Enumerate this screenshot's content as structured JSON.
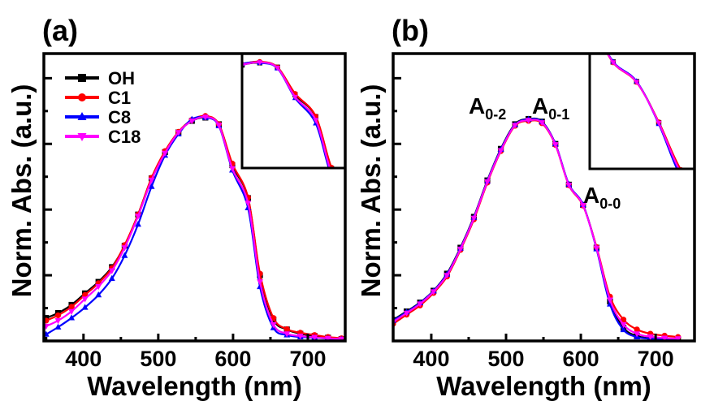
{
  "chart_data": [
    {
      "panel_label": "(a)",
      "type": "line",
      "xlabel": "Wavelength (nm)",
      "ylabel": "Norm. Abs. (a.u.)",
      "xlim": [
        347,
        750
      ],
      "ylim": [
        0,
        0.875
      ],
      "x_ticks": [
        400,
        500,
        600,
        700
      ],
      "x_tick_labels": [
        "400",
        "500",
        "600",
        "700"
      ],
      "y_tick_labels_shown": false,
      "grid": false,
      "legend": {
        "placement": "top-left",
        "entries": [
          {
            "name": "OH",
            "color": "#000000",
            "marker": "square"
          },
          {
            "name": "C1",
            "color": "#ff0000",
            "marker": "circle"
          },
          {
            "name": "C8",
            "color": "#0000ff",
            "marker": "triangle-up"
          },
          {
            "name": "C18",
            "color": "#ff00ff",
            "marker": "triangle-down"
          }
        ]
      },
      "x": [
        350,
        366,
        384,
        402,
        420,
        438,
        455,
        473,
        491,
        509,
        527,
        545,
        563,
        581,
        599,
        620,
        636,
        654,
        672,
        690,
        709,
        727,
        745
      ],
      "series": [
        {
          "name": "OH",
          "color": "#000000",
          "values": [
            0.07,
            0.085,
            0.11,
            0.145,
            0.18,
            0.225,
            0.29,
            0.385,
            0.495,
            0.575,
            0.635,
            0.67,
            0.68,
            0.66,
            0.535,
            0.435,
            0.2,
            0.065,
            0.035,
            0.022,
            0.015,
            0.01,
            0.006
          ]
        },
        {
          "name": "C1",
          "color": "#ff0000",
          "values": [
            0.062,
            0.078,
            0.104,
            0.14,
            0.176,
            0.222,
            0.292,
            0.385,
            0.497,
            0.578,
            0.637,
            0.673,
            0.685,
            0.66,
            0.54,
            0.437,
            0.205,
            0.07,
            0.036,
            0.025,
            0.018,
            0.012,
            0.008
          ]
        },
        {
          "name": "C8",
          "color": "#0000ff",
          "values": [
            0.02,
            0.042,
            0.07,
            0.102,
            0.14,
            0.19,
            0.26,
            0.355,
            0.47,
            0.565,
            0.63,
            0.675,
            0.68,
            0.655,
            0.52,
            0.405,
            0.165,
            0.04,
            0.018,
            0.012,
            0.01,
            0.007,
            0.005
          ]
        },
        {
          "name": "C18",
          "color": "#ff00ff",
          "values": [
            0.045,
            0.062,
            0.09,
            0.128,
            0.166,
            0.214,
            0.284,
            0.38,
            0.49,
            0.572,
            0.635,
            0.67,
            0.682,
            0.657,
            0.525,
            0.42,
            0.18,
            0.05,
            0.022,
            0.015,
            0.011,
            0.008,
            0.006
          ]
        }
      ],
      "inset": {
        "description": "zoom of shoulder region near 600 nm",
        "x_range_approx": [
          560,
          640
        ]
      }
    },
    {
      "panel_label": "(b)",
      "type": "line",
      "xlabel": "Wavelength (nm)",
      "ylabel": "Norm. Abs. (a.u.)",
      "xlim": [
        349,
        752
      ],
      "ylim": [
        0,
        0.875
      ],
      "x_ticks": [
        400,
        500,
        600,
        700
      ],
      "x_tick_labels": [
        "400",
        "500",
        "600",
        "700"
      ],
      "y_tick_labels_shown": false,
      "grid": false,
      "annotations": [
        {
          "text": "A",
          "sub": "0-2",
          "near_x": 510
        },
        {
          "text": "A",
          "sub": "0-1",
          "near_x": 560
        },
        {
          "text": "A",
          "sub": "0-0",
          "near_x": 610
        }
      ],
      "x": [
        349,
        367,
        385,
        403,
        421,
        439,
        457,
        475,
        493,
        512,
        530,
        548,
        566,
        584,
        603,
        621,
        639,
        657,
        675,
        693,
        712,
        730
      ],
      "series": [
        {
          "name": "OH",
          "color": "#000000",
          "values": [
            0.064,
            0.09,
            0.117,
            0.153,
            0.205,
            0.284,
            0.378,
            0.489,
            0.585,
            0.66,
            0.676,
            0.668,
            0.6,
            0.476,
            0.414,
            0.284,
            0.12,
            0.04,
            0.015,
            0.008,
            0.005,
            0.004
          ]
        },
        {
          "name": "C1",
          "color": "#ff0000",
          "values": [
            0.052,
            0.08,
            0.108,
            0.146,
            0.196,
            0.277,
            0.37,
            0.482,
            0.578,
            0.655,
            0.67,
            0.663,
            0.597,
            0.474,
            0.412,
            0.286,
            0.135,
            0.065,
            0.035,
            0.022,
            0.016,
            0.012
          ]
        },
        {
          "name": "C8",
          "color": "#0000ff",
          "values": [
            0.062,
            0.088,
            0.116,
            0.152,
            0.203,
            0.282,
            0.376,
            0.487,
            0.583,
            0.658,
            0.675,
            0.667,
            0.6,
            0.477,
            0.415,
            0.28,
            0.112,
            0.034,
            0.012,
            0.007,
            0.005,
            0.004
          ]
        },
        {
          "name": "C18",
          "color": "#ff00ff",
          "values": [
            0.058,
            0.085,
            0.113,
            0.15,
            0.2,
            0.28,
            0.374,
            0.485,
            0.58,
            0.657,
            0.672,
            0.665,
            0.598,
            0.475,
            0.413,
            0.283,
            0.125,
            0.05,
            0.022,
            0.013,
            0.009,
            0.007
          ]
        }
      ],
      "inset": {
        "description": "zoom of A0-0 shoulder region near 600 nm",
        "x_range_approx": [
          580,
          640
        ]
      }
    }
  ]
}
